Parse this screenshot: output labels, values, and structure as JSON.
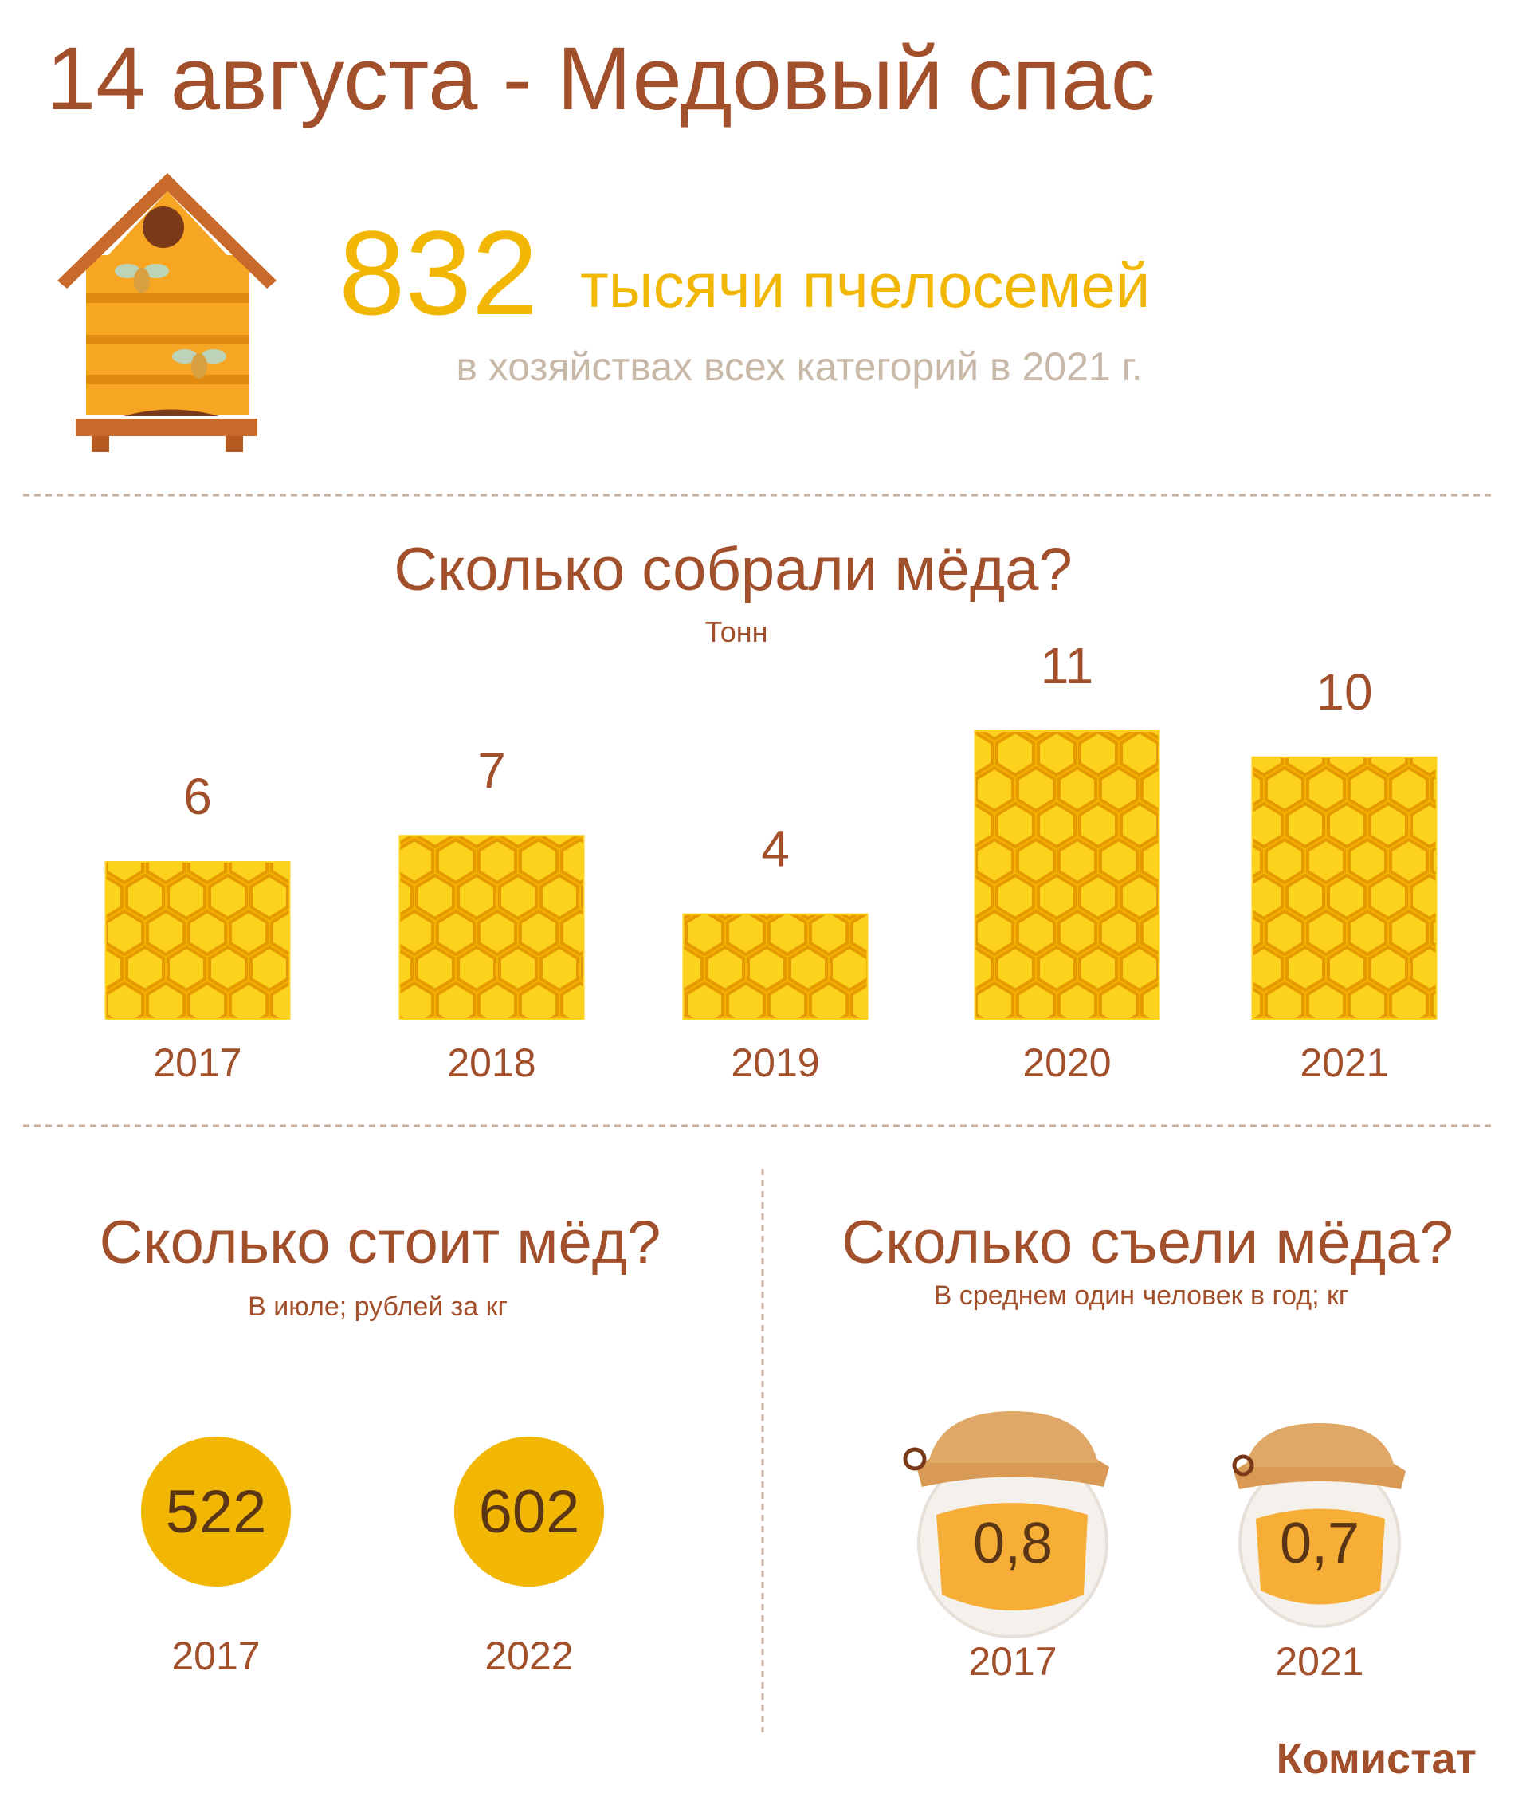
{
  "title": "14  августа - Медовый спас",
  "hive": {
    "value": "832",
    "unit": "тысячи пчелосемей",
    "note": "в хозяйствах всех категорий в 2021 г."
  },
  "chart_data": {
    "type": "bar",
    "title": "Сколько собрали мёда?",
    "subtitle": "Тонн",
    "categories": [
      "2017",
      "2018",
      "2019",
      "2020",
      "2021"
    ],
    "values": [
      6,
      7,
      4,
      11,
      10
    ],
    "color": "#fcd21c"
  },
  "price": {
    "title": "Сколько стоит мёд?",
    "subtitle": "В июле; рублей за кг",
    "items": [
      {
        "value": "522",
        "year": "2017"
      },
      {
        "value": "602",
        "year": "2022"
      }
    ]
  },
  "consumption": {
    "title": "Сколько съели мёда?",
    "subtitle": "В среднем один человек в год; кг",
    "items": [
      {
        "value": "0,8",
        "year": "2017"
      },
      {
        "value": "0,7",
        "year": "2021"
      }
    ]
  },
  "source": "Комистат"
}
